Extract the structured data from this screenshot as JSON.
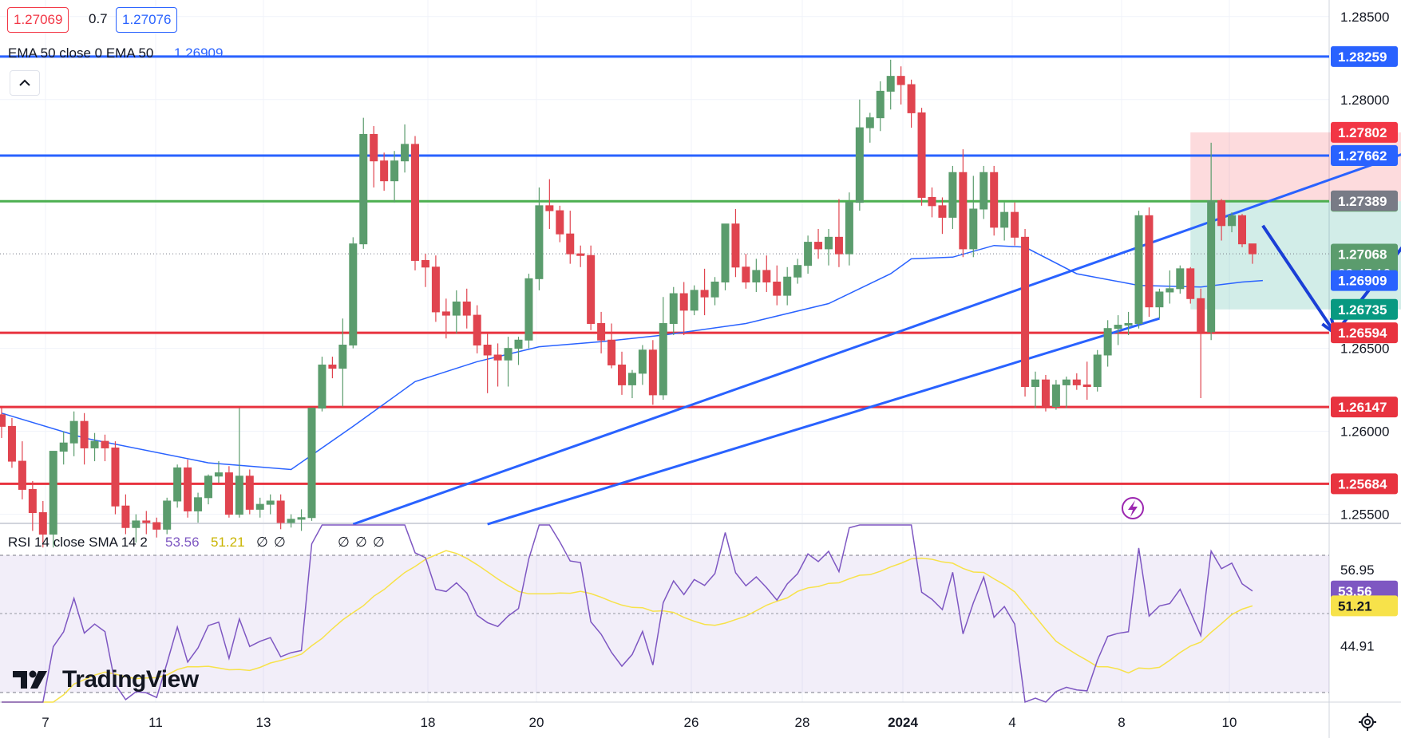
{
  "legend": {
    "bid": "1.27069",
    "spread": "0.7",
    "ask": "1.27076",
    "ema_label": "EMA 50 close 0 EMA 50",
    "ema_value": "1.26909",
    "rsi_label": "RSI 14 close SMA 14 2",
    "rsi_value": "53.56",
    "rsi_sma_value": "51.21",
    "rsi_extra": [
      "∅",
      "∅"
    ],
    "rsi_div_marks": [
      "∅",
      "∅",
      "∅"
    ]
  },
  "brand": "TradingView",
  "colors": {
    "up": "#5b9c6d",
    "down": "#e0444f",
    "ema": "#2962ff",
    "blue_line": "#2962ff",
    "red_line": "#e8333f",
    "green_line": "#4caf50",
    "rsi": "#7e57c2",
    "rsi_sma": "#f7e24a",
    "arrow": "#1a3fd6"
  },
  "chart_data": {
    "type": "candlestick",
    "instrument_decimals": 5,
    "price_axis_ticks": [
      "1.28500",
      "1.28000",
      "1.26500",
      "1.26000",
      "1.25500"
    ],
    "price_range": [
      1.2545,
      1.286
    ],
    "time_axis_ticks": [
      "7",
      "11",
      "13",
      "18",
      "20",
      "26",
      "28",
      "2024",
      "4",
      "8",
      "10"
    ],
    "horizontal_levels": [
      {
        "label": "1.28259",
        "value": 1.28259,
        "color": "blue_line"
      },
      {
        "label": "1.27662",
        "value": 1.27662,
        "color": "blue_line"
      },
      {
        "label": "1.27387",
        "value": 1.27387,
        "color": "green_line"
      },
      {
        "label": "1.26594",
        "value": 1.26594,
        "color": "red_line"
      },
      {
        "label": "1.26147",
        "value": 1.26147,
        "color": "red_line"
      },
      {
        "label": "1.25684",
        "value": 1.25684,
        "color": "red_line"
      }
    ],
    "price_labels": [
      {
        "label": "1.27802",
        "value": 1.27802,
        "bg": "#f23645"
      },
      {
        "label": "1.27389",
        "value": 1.27389,
        "bg": "#787b86"
      },
      {
        "label": "1.27068",
        "value": 1.27068,
        "bg": "#5b9c6d",
        "sub": "03:47:10"
      },
      {
        "label": "1.26909",
        "value": 1.26909,
        "bg": "#2962ff"
      },
      {
        "label": "1.26735",
        "value": 1.26735,
        "bg": "#089981"
      }
    ],
    "position": {
      "entry": 1.27387,
      "stop": 1.27802,
      "target": 1.26735
    },
    "candles": [
      [
        1.261,
        1.2614,
        1.2596,
        1.2603
      ],
      [
        1.2603,
        1.2608,
        1.2578,
        1.2582
      ],
      [
        1.2582,
        1.2594,
        1.2559,
        1.2565
      ],
      [
        1.2565,
        1.257,
        1.254,
        1.2551
      ],
      [
        1.2551,
        1.2558,
        1.253,
        1.2538
      ],
      [
        1.2538,
        1.2588,
        1.253,
        1.2588
      ],
      [
        1.2588,
        1.26,
        1.258,
        1.2593
      ],
      [
        1.2593,
        1.2612,
        1.2585,
        1.2606
      ],
      [
        1.2606,
        1.2611,
        1.258,
        1.259
      ],
      [
        1.259,
        1.2599,
        1.2582,
        1.2594
      ],
      [
        1.2594,
        1.2598,
        1.2582,
        1.259
      ],
      [
        1.259,
        1.2594,
        1.255,
        1.2555
      ],
      [
        1.2555,
        1.2562,
        1.2538,
        1.2542
      ],
      [
        1.2542,
        1.255,
        1.2533,
        1.2546
      ],
      [
        1.2546,
        1.2552,
        1.2538,
        1.2545
      ],
      [
        1.2545,
        1.2548,
        1.2536,
        1.2541
      ],
      [
        1.2541,
        1.256,
        1.2538,
        1.2558
      ],
      [
        1.2558,
        1.258,
        1.2554,
        1.2578
      ],
      [
        1.2578,
        1.2583,
        1.2548,
        1.2552
      ],
      [
        1.2552,
        1.2563,
        1.2545,
        1.256
      ],
      [
        1.256,
        1.2574,
        1.2556,
        1.2573
      ],
      [
        1.2573,
        1.2582,
        1.2569,
        1.2575
      ],
      [
        1.2575,
        1.2579,
        1.2548,
        1.255
      ],
      [
        1.255,
        1.2614,
        1.2548,
        1.2573
      ],
      [
        1.2573,
        1.2577,
        1.255,
        1.2553
      ],
      [
        1.2553,
        1.256,
        1.2548,
        1.2556
      ],
      [
        1.2556,
        1.2562,
        1.255,
        1.2558
      ],
      [
        1.2558,
        1.2562,
        1.2541,
        1.2545
      ],
      [
        1.2545,
        1.255,
        1.2542,
        1.2547
      ],
      [
        1.2547,
        1.2553,
        1.254,
        1.2548
      ],
      [
        1.2548,
        1.2614,
        1.2546,
        1.2614
      ],
      [
        1.2614,
        1.2645,
        1.2612,
        1.264
      ],
      [
        1.264,
        1.2645,
        1.2632,
        1.2638
      ],
      [
        1.2638,
        1.2668,
        1.2615,
        1.2652
      ],
      [
        1.2652,
        1.2717,
        1.265,
        1.2713
      ],
      [
        1.2713,
        1.2789,
        1.271,
        1.2779
      ],
      [
        1.2779,
        1.2784,
        1.2747,
        1.2763
      ],
      [
        1.2763,
        1.2768,
        1.2745,
        1.2751
      ],
      [
        1.2751,
        1.2769,
        1.2738,
        1.2763
      ],
      [
        1.2763,
        1.2785,
        1.2756,
        1.2773
      ],
      [
        1.2773,
        1.2778,
        1.2697,
        1.2703
      ],
      [
        1.2703,
        1.2707,
        1.2687,
        1.2699
      ],
      [
        1.2699,
        1.2706,
        1.2666,
        1.2672
      ],
      [
        1.2672,
        1.268,
        1.2656,
        1.267
      ],
      [
        1.267,
        1.2685,
        1.2659,
        1.2678
      ],
      [
        1.2678,
        1.2686,
        1.2662,
        1.267
      ],
      [
        1.267,
        1.2676,
        1.2647,
        1.2652
      ],
      [
        1.2652,
        1.2659,
        1.2623,
        1.2646
      ],
      [
        1.2646,
        1.2653,
        1.2627,
        1.2643
      ],
      [
        1.2643,
        1.2657,
        1.2627,
        1.265
      ],
      [
        1.265,
        1.2657,
        1.264,
        1.2655
      ],
      [
        1.2655,
        1.2695,
        1.265,
        1.2692
      ],
      [
        1.2692,
        1.2747,
        1.2685,
        1.2736
      ],
      [
        1.2736,
        1.2752,
        1.2722,
        1.2733
      ],
      [
        1.2733,
        1.2736,
        1.2714,
        1.2719
      ],
      [
        1.2719,
        1.2733,
        1.2701,
        1.2707
      ],
      [
        1.2707,
        1.2712,
        1.2699,
        1.2706
      ],
      [
        1.2706,
        1.2712,
        1.2661,
        1.2665
      ],
      [
        1.2665,
        1.2672,
        1.2647,
        1.2655
      ],
      [
        1.2655,
        1.2665,
        1.2638,
        1.264
      ],
      [
        1.264,
        1.2648,
        1.2622,
        1.2628
      ],
      [
        1.2628,
        1.2637,
        1.262,
        1.2635
      ],
      [
        1.2635,
        1.2652,
        1.2628,
        1.2649
      ],
      [
        1.2649,
        1.2655,
        1.2616,
        1.2622
      ],
      [
        1.2622,
        1.2681,
        1.2619,
        1.2665
      ],
      [
        1.2665,
        1.2687,
        1.2658,
        1.2683
      ],
      [
        1.2683,
        1.269,
        1.2658,
        1.2673
      ],
      [
        1.2673,
        1.2688,
        1.267,
        1.2685
      ],
      [
        1.2685,
        1.2698,
        1.267,
        1.2681
      ],
      [
        1.2681,
        1.2693,
        1.2676,
        1.269
      ],
      [
        1.269,
        1.2725,
        1.2685,
        1.2725
      ],
      [
        1.2725,
        1.2734,
        1.2693,
        1.2699
      ],
      [
        1.2699,
        1.2707,
        1.2686,
        1.269
      ],
      [
        1.269,
        1.2704,
        1.2684,
        1.2697
      ],
      [
        1.2697,
        1.2706,
        1.2684,
        1.269
      ],
      [
        1.269,
        1.27,
        1.2676,
        1.2682
      ],
      [
        1.2682,
        1.2699,
        1.2676,
        1.2693
      ],
      [
        1.2693,
        1.2704,
        1.2689,
        1.27
      ],
      [
        1.27,
        1.2718,
        1.2695,
        1.2714
      ],
      [
        1.2714,
        1.2722,
        1.2704,
        1.271
      ],
      [
        1.271,
        1.2722,
        1.27,
        1.2717
      ],
      [
        1.2717,
        1.274,
        1.2699,
        1.2707
      ],
      [
        1.2707,
        1.2744,
        1.27,
        1.2738
      ],
      [
        1.2738,
        1.28,
        1.2733,
        1.2783
      ],
      [
        1.2783,
        1.2792,
        1.2774,
        1.2789
      ],
      [
        1.2789,
        1.2811,
        1.2781,
        1.2805
      ],
      [
        1.2805,
        1.2824,
        1.2794,
        1.2814
      ],
      [
        1.2814,
        1.282,
        1.2797,
        1.2809
      ],
      [
        1.2809,
        1.2812,
        1.2783,
        1.2792
      ],
      [
        1.2792,
        1.2795,
        1.2736,
        1.2741
      ],
      [
        1.2741,
        1.2747,
        1.2729,
        1.2736
      ],
      [
        1.2736,
        1.2741,
        1.2719,
        1.2729
      ],
      [
        1.2729,
        1.276,
        1.2722,
        1.2756
      ],
      [
        1.2756,
        1.277,
        1.2705,
        1.271
      ],
      [
        1.271,
        1.2754,
        1.2705,
        1.2734
      ],
      [
        1.2734,
        1.276,
        1.2728,
        1.2756
      ],
      [
        1.2756,
        1.276,
        1.2718,
        1.2723
      ],
      [
        1.2723,
        1.2738,
        1.2715,
        1.2732
      ],
      [
        1.2732,
        1.2738,
        1.2712,
        1.2717
      ],
      [
        1.2717,
        1.2722,
        1.2621,
        1.2627
      ],
      [
        1.2627,
        1.2636,
        1.2614,
        1.2631
      ],
      [
        1.2631,
        1.2634,
        1.2612,
        1.2615
      ],
      [
        1.2615,
        1.2631,
        1.2613,
        1.2628
      ],
      [
        1.2628,
        1.2633,
        1.2614,
        1.2631
      ],
      [
        1.2631,
        1.2635,
        1.2625,
        1.2628
      ],
      [
        1.2628,
        1.2642,
        1.2619,
        1.2627
      ],
      [
        1.2627,
        1.2649,
        1.2624,
        1.2646
      ],
      [
        1.2646,
        1.2667,
        1.2639,
        1.2662
      ],
      [
        1.2662,
        1.267,
        1.2652,
        1.2664
      ],
      [
        1.2664,
        1.2672,
        1.2658,
        1.2665
      ],
      [
        1.2665,
        1.2733,
        1.2662,
        1.273
      ],
      [
        1.273,
        1.2735,
        1.2669,
        1.2675
      ],
      [
        1.2675,
        1.2686,
        1.2668,
        1.2684
      ],
      [
        1.2684,
        1.2697,
        1.2677,
        1.2686
      ],
      [
        1.2686,
        1.27,
        1.2683,
        1.2698
      ],
      [
        1.2698,
        1.2699,
        1.2677,
        1.268
      ],
      [
        1.268,
        1.2686,
        1.262,
        1.266
      ],
      [
        1.266,
        1.2774,
        1.2655,
        1.2739
      ],
      [
        1.2739,
        1.274,
        1.2715,
        1.2724
      ],
      [
        1.2724,
        1.2732,
        1.272,
        1.273
      ],
      [
        1.273,
        1.2731,
        1.2711,
        1.2713
      ],
      [
        1.2713,
        1.2713,
        1.2701,
        1.2707
      ]
    ],
    "ema50_anchors": [
      [
        0,
        1.2611
      ],
      [
        8,
        1.2596
      ],
      [
        20,
        1.2581
      ],
      [
        28,
        1.2577
      ],
      [
        34,
        1.2603
      ],
      [
        40,
        1.263
      ],
      [
        46,
        1.2642
      ],
      [
        52,
        1.2651
      ],
      [
        58,
        1.2654
      ],
      [
        64,
        1.2658
      ],
      [
        72,
        1.2665
      ],
      [
        80,
        1.2677
      ],
      [
        86,
        1.2695
      ],
      [
        88,
        1.2704
      ],
      [
        92,
        1.2705
      ],
      [
        96,
        1.2712
      ],
      [
        99,
        1.2711
      ],
      [
        104,
        1.2695
      ],
      [
        110,
        1.2688
      ],
      [
        116,
        1.2687
      ],
      [
        120,
        1.269
      ],
      [
        122,
        1.26909
      ]
    ],
    "rsi_pane": {
      "ticks": [
        "56.95",
        "44.91"
      ],
      "range": [
        36.0,
        64.0
      ],
      "band": [
        70,
        30
      ],
      "current_rsi": 53.56,
      "current_sma": 51.21
    },
    "position_tool": {
      "x_start_index": 115,
      "x_end_index": 141
    }
  }
}
